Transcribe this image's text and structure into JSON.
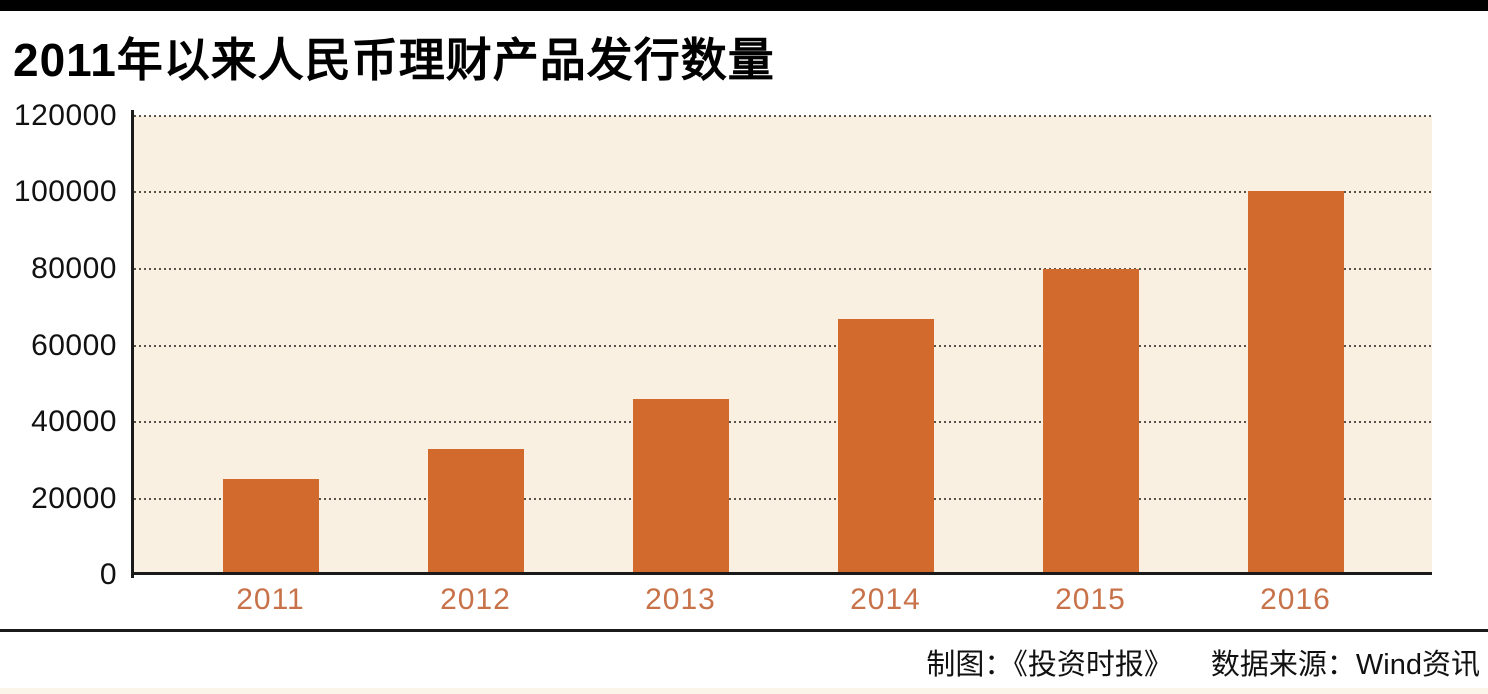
{
  "page": {
    "title": "2011年以来人民币理财产品发行数量",
    "footer": {
      "credit": "制图：《投资时报》",
      "source": "数据来源：Wind资讯"
    }
  },
  "colors": {
    "top_bar": "#000000",
    "plot_background": "#faf0e2",
    "bar": "#d2692d",
    "axis": "#1a1a1a",
    "gridline_dots": "#58524b",
    "year_label": "#c8724a",
    "y_label": "#111111",
    "bottom_strip": "#fbf5e9"
  },
  "chart_data": {
    "type": "bar",
    "title": "2011年以来人民币理财产品发行数量",
    "categories": [
      "2011",
      "2012",
      "2013",
      "2014",
      "2015",
      "2016"
    ],
    "values": [
      25000,
      33000,
      46000,
      67000,
      80000,
      100500
    ],
    "xlabel": "",
    "ylabel": "",
    "ylim": [
      0,
      120000
    ],
    "ytick_step": 20000,
    "ytick_labels": [
      "0",
      "20000",
      "40000",
      "60000",
      "80000",
      "100000",
      "120000"
    ],
    "grid": "horizontal-dotted",
    "legend_position": "none",
    "source_note": "数据来源：Wind资讯",
    "credit_note": "制图：《投资时报》"
  }
}
